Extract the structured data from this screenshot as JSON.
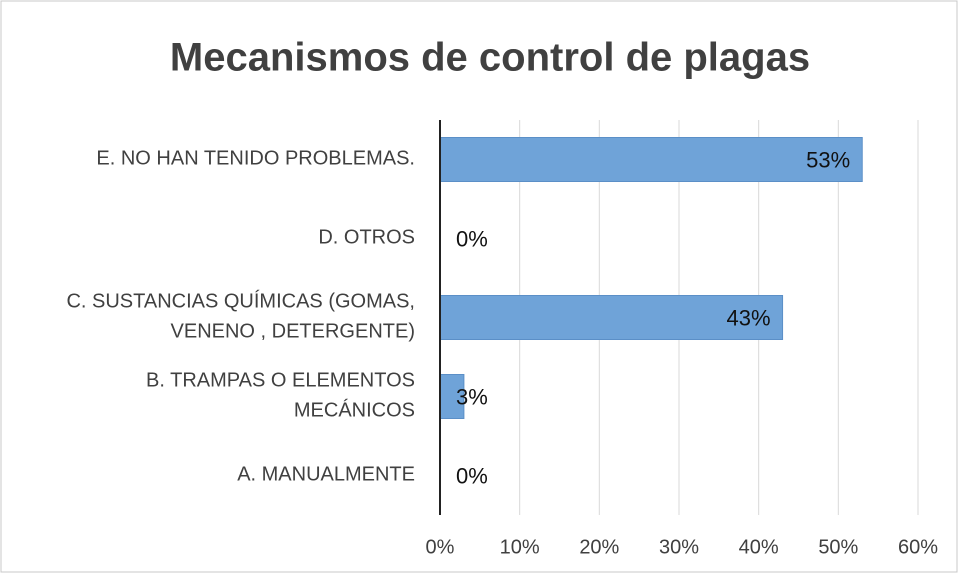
{
  "chart_data": {
    "type": "hbar",
    "title": "Mecanismos de control de plagas",
    "categories": [
      "E. NO HAN TENIDO PROBLEMAS.",
      "D. OTROS",
      "C. SUSTANCIAS QUÍMICAS (GOMAS, VENENO , DETERGENTE)",
      "B. TRAMPAS O ELEMENTOS MECÁNICOS",
      "A. MANUALMENTE"
    ],
    "values": [
      53,
      0,
      43,
      3,
      0
    ],
    "value_labels": [
      "53%",
      "0%",
      "43%",
      "3%",
      "0%"
    ],
    "color": "#6fa3d8",
    "xlim": [
      0,
      60
    ],
    "xticks": [
      {
        "value": 0,
        "label": "0%"
      },
      {
        "value": 10,
        "label": "10%"
      },
      {
        "value": 20,
        "label": "20%"
      },
      {
        "value": 30,
        "label": "30%"
      },
      {
        "value": 40,
        "label": "40%"
      },
      {
        "value": 50,
        "label": "50%"
      },
      {
        "value": 60,
        "label": "60%"
      }
    ],
    "grid": true
  }
}
